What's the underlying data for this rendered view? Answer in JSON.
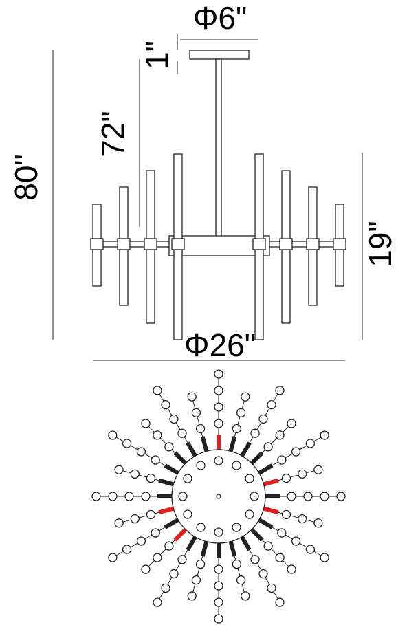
{
  "dimensions": {
    "canopy_diameter": "Φ6\"",
    "canopy_height": "1\"",
    "chain_length": "72\"",
    "overall_height": "80\"",
    "fixture_height": "19\"",
    "fixture_diameter": "Φ26\""
  }
}
